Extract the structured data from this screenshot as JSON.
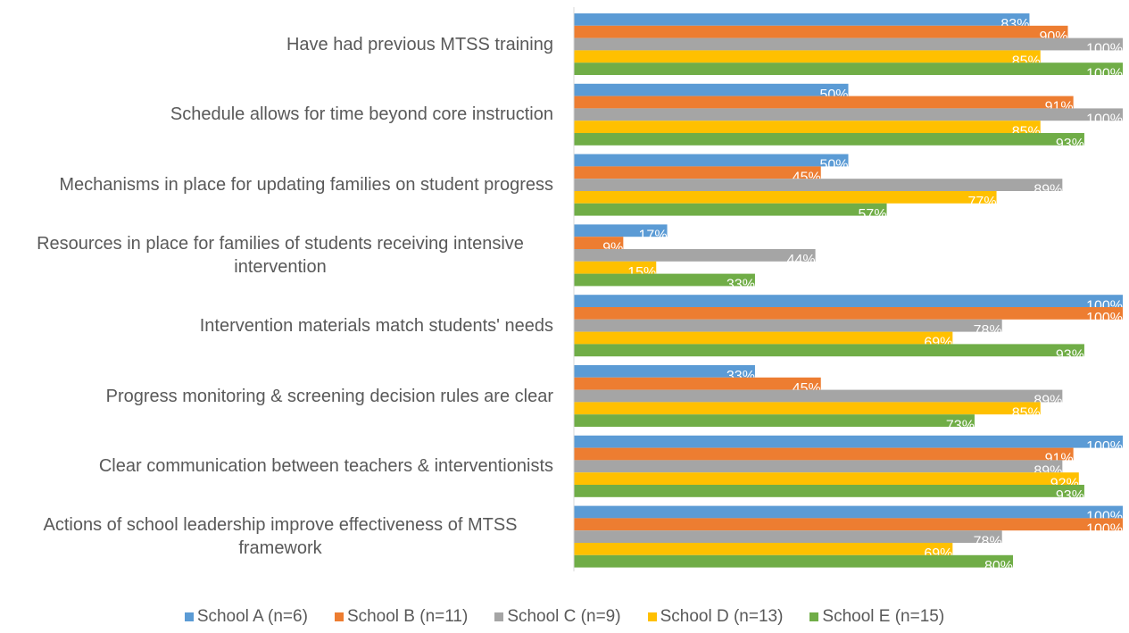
{
  "chart_data": {
    "type": "bar",
    "orientation": "horizontal",
    "categories": [
      "Have had previous MTSS training",
      "Schedule allows for time beyond core instruction",
      "Mechanisms in place for updating families on student progress",
      "Resources in place for families of students receiving intensive intervention",
      "Intervention materials match students' needs",
      "Progress monitoring & screening decision rules are clear",
      "Clear communication between teachers & interventionists",
      "Actions of school leadership improve effectiveness of MTSS framework"
    ],
    "xlim": [
      0,
      100
    ],
    "legend": "bottom",
    "series": [
      {
        "name": "School A (n=6)",
        "color": "#5b9bd5",
        "values": [
          83,
          50,
          50,
          17,
          100,
          33,
          100,
          100
        ],
        "value_labels": [
          "83%",
          "50%",
          "50%",
          "17%",
          "100%",
          "33%",
          "100%",
          "100%"
        ]
      },
      {
        "name": "School B (n=11)",
        "color": "#ed7d31",
        "values": [
          90,
          91,
          45,
          9,
          100,
          45,
          91,
          100
        ],
        "value_labels": [
          "90%",
          "91%",
          "45%",
          "9%",
          "100%",
          "45%",
          "91%",
          "100%"
        ]
      },
      {
        "name": "School C (n=9)",
        "color": "#a5a5a5",
        "values": [
          100,
          100,
          89,
          44,
          78,
          89,
          89,
          78
        ],
        "value_labels": [
          "100%",
          "100%",
          "89%",
          "44%",
          "78%",
          "89%",
          "89%",
          "78%"
        ]
      },
      {
        "name": "School D (n=13)",
        "color": "#ffc000",
        "values": [
          85,
          85,
          77,
          15,
          69,
          85,
          92,
          69
        ],
        "value_labels": [
          "85%",
          "85%",
          "77%",
          "15%",
          "69%",
          "85%",
          "92%",
          "69%"
        ]
      },
      {
        "name": "School E (n=15)",
        "color": "#70ad47",
        "values": [
          100,
          93,
          57,
          33,
          93,
          73,
          93,
          80
        ],
        "value_labels": [
          "100%",
          "93%",
          "57%",
          "33%",
          "93%",
          "73%",
          "93%",
          "80%"
        ]
      }
    ]
  }
}
